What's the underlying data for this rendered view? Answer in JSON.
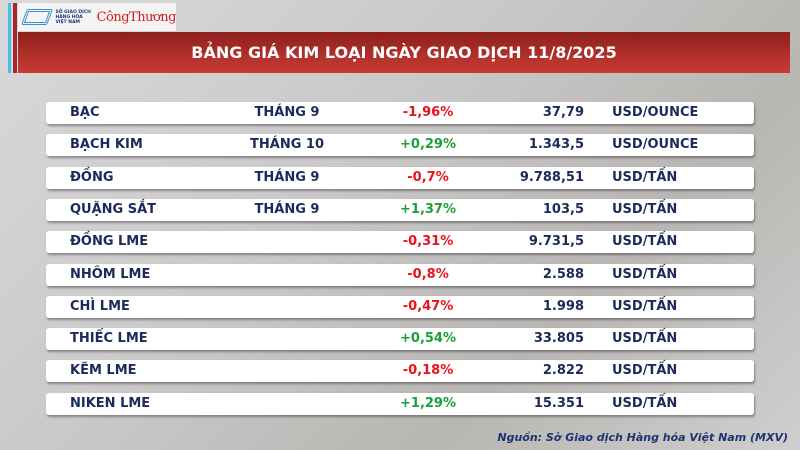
{
  "logo": {
    "org": "SỞ GIAO DỊCH HÀNG HÓA VIỆT NAM",
    "brand": "CôngThương"
  },
  "title": "BẢNG GIÁ KIM LOẠI NGÀY GIAO DỊCH 11/8/2025",
  "colors": {
    "negative": "#e8121c",
    "positive": "#1e9e3a",
    "banner": "#b3302b"
  },
  "rows": [
    {
      "name": "BẠC",
      "month": "THÁNG 9",
      "change": "-1,96%",
      "price": "37,79",
      "unit": "USD/OUNCE"
    },
    {
      "name": "BẠCH KIM",
      "month": "THÁNG 10",
      "change": "+0,29%",
      "price": "1.343,5",
      "unit": "USD/OUNCE"
    },
    {
      "name": "ĐỒNG",
      "month": "THÁNG 9",
      "change": "-0,7%",
      "price": "9.788,51",
      "unit": "USD/TẤN"
    },
    {
      "name": "QUẶNG SẮT",
      "month": "THÁNG 9",
      "change": "+1,37%",
      "price": "103,5",
      "unit": "USD/TẤN"
    },
    {
      "name": "ĐỒNG LME",
      "month": "",
      "change": "-0,31%",
      "price": "9.731,5",
      "unit": "USD/TẤN"
    },
    {
      "name": "NHÔM LME",
      "month": "",
      "change": "-0,8%",
      "price": "2.588",
      "unit": "USD/TẤN"
    },
    {
      "name": "CHÌ LME",
      "month": "",
      "change": "-0,47%",
      "price": "1.998",
      "unit": "USD/TẤN"
    },
    {
      "name": "THIẾC LME",
      "month": "",
      "change": "+0,54%",
      "price": "33.805",
      "unit": "USD/TẤN"
    },
    {
      "name": "KẼM LME",
      "month": "",
      "change": "-0,18%",
      "price": "2.822",
      "unit": "USD/TẤN"
    },
    {
      "name": "NIKEN LME",
      "month": "",
      "change": "+1,29%",
      "price": "15.351",
      "unit": "USD/TẤN"
    }
  ],
  "source": "Nguồn: Sở Giao dịch Hàng hóa Việt Nam (MXV)"
}
